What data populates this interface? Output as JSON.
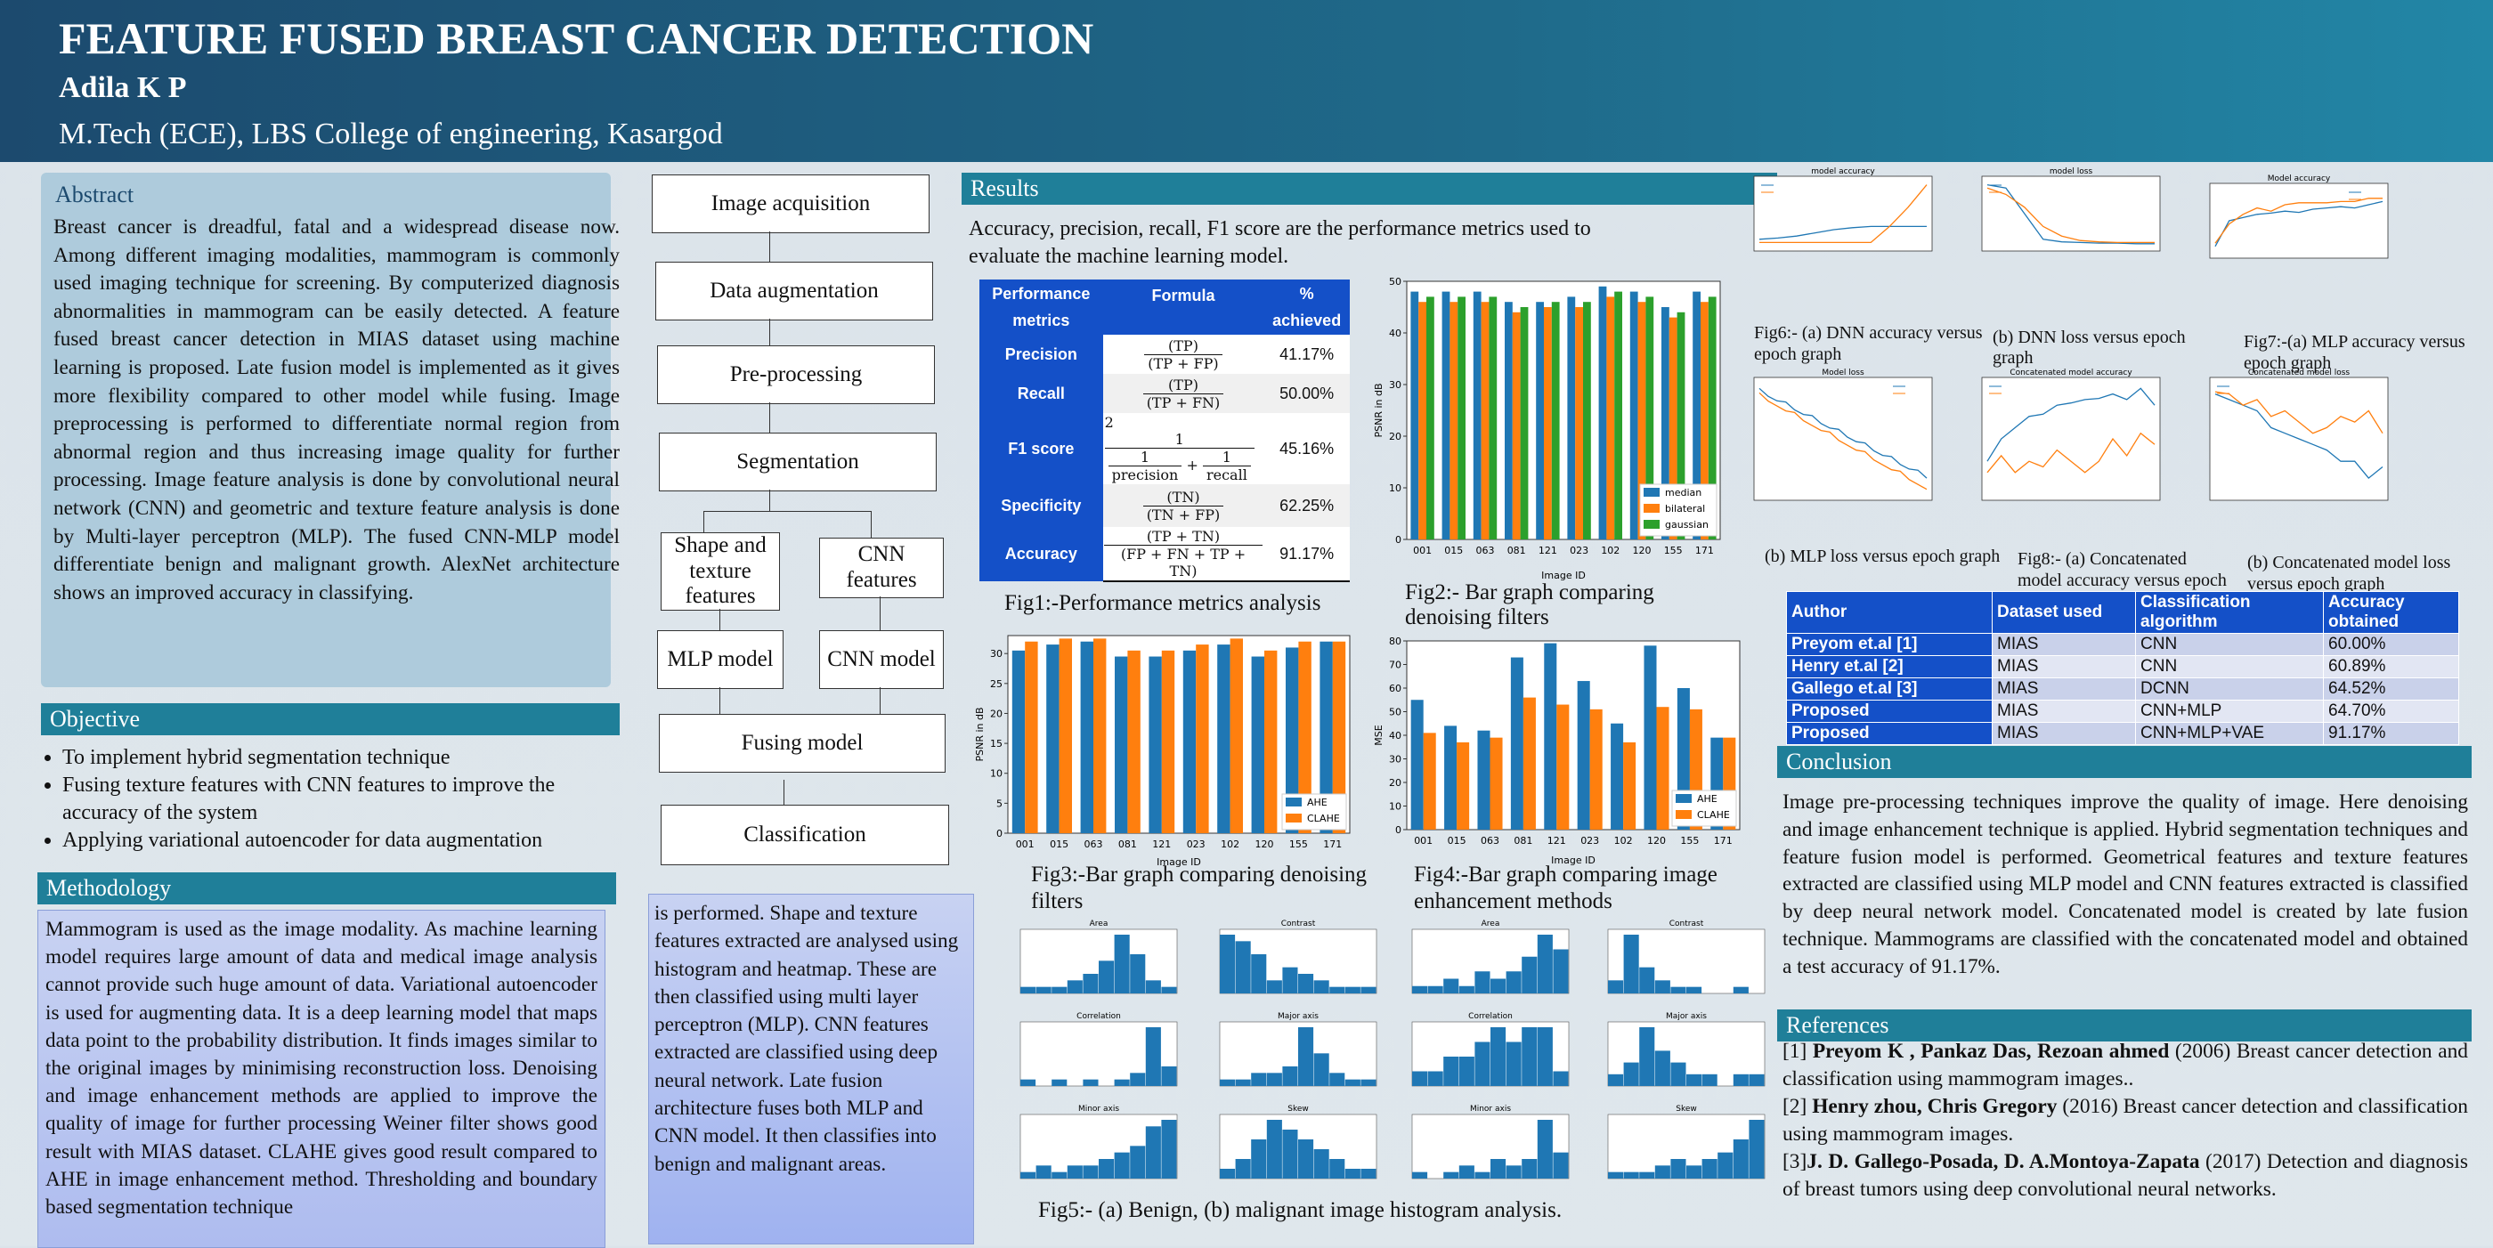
{
  "header": {
    "title": "FEATURE FUSED BREAST CANCER DETECTION",
    "author": "Adila K P",
    "affiliation": "M.Tech (ECE), LBS College of engineering, Kasargod"
  },
  "abstract": {
    "title": "Abstract",
    "text": "Breast cancer is dreadful, fatal and a widespread disease now. Among different imaging modalities, mammogram is commonly used imaging technique for screening. By computerized diagnosis abnormalities in mammogram can be easily detected. A feature fused breast cancer detection in MIAS dataset using machine learning is proposed. Late fusion model is implemented as it gives more flexibility compared to other model while fusing. Image preprocessing is performed to differentiate normal region from abnormal region and thus increasing image quality for further processing. Image feature analysis is done by convolutional neural network (CNN) and geometric and texture feature analysis is done by Multi-layer perceptron (MLP). The fused CNN-MLP model differentiate benign and malignant growth. AlexNet architecture shows an improved accuracy in classifying."
  },
  "objective": {
    "title": "Objective",
    "items": [
      "To implement hybrid segmentation technique",
      "Fusing texture features with CNN features to improve the accuracy of the system",
      "Applying variational autoencoder for data augmentation"
    ]
  },
  "methodology": {
    "title": "Methodology",
    "text": "Mammogram is used as the image modality. As machine learning model requires large amount of data and medical image analysis cannot provide such huge amount of data. Variational autoencoder is used for augmenting data. It is a deep learning model that maps data point to the probability distribution. It finds images similar to the original images by minimising reconstruction loss. Denoising and image enhancement methods are applied to improve the quality of image for further processing Weiner filter shows good result with MIAS dataset.  CLAHE gives good result compared to AHE in image enhancement method. Thresholding and boundary based segmentation technique",
    "continued": "is performed. Shape and texture features extracted are analysed using histogram and heatmap. These are then classified using multi layer perceptron (MLP). CNN features extracted are classified using deep neural network. Late fusion architecture fuses both MLP and CNN model. It then classifies into benign and malignant areas."
  },
  "flow": {
    "acq": "Image acquisition",
    "aug": "Data augmentation",
    "pre": "Pre-processing",
    "seg": "Segmentation",
    "shape": "Shape and texture features",
    "cnnf": "CNN features",
    "mlp": "MLP model",
    "cnnm": "CNN model",
    "fuse": "Fusing model",
    "cls": "Classification"
  },
  "results": {
    "title": "Results",
    "intro": "Accuracy, precision, recall, F1 score are the performance metrics used to evaluate the machine learning model.",
    "table_head": [
      "Performance metrics",
      "Formula",
      "% achieved"
    ],
    "rows": [
      {
        "m": "Precision",
        "num": "(TP)",
        "den": "(TP + FP)",
        "v": "41.17%"
      },
      {
        "m": "Recall",
        "num": "(TP)",
        "den": "(TP + FN)",
        "v": "50.00%"
      },
      {
        "m": "F1 score",
        "num": "1",
        "den": "",
        "v": "45.16%"
      },
      {
        "m": "Specificity",
        "num": "(TN)",
        "den": "(TN + FP)",
        "v": "62.25%"
      },
      {
        "m": "Accuracy",
        "num": "(TP + TN)",
        "den": "(FP + FN + TP + TN)",
        "v": "91.17%"
      }
    ],
    "f1": {
      "two": "2",
      "one": "1",
      "prec": "precision",
      "rec": "recall",
      "plus": "+"
    },
    "fig1": "Fig1:-Performance metrics analysis",
    "fig2": "Fig2:- Bar graph comparing denoising filters",
    "fig3": "Fig3:-Bar graph comparing denoising filters",
    "fig4": "Fig4:-Bar graph comparing image enhancement methods",
    "fig5": "Fig5:- (a) Benign, (b) malignant image histogram analysis."
  },
  "chart_data": [
    {
      "type": "bar",
      "categories": [
        "001",
        "015",
        "063",
        "081",
        "121",
        "023",
        "102",
        "120",
        "155",
        "171"
      ],
      "series": [
        {
          "name": "median",
          "values": [
            48,
            48,
            48,
            46,
            46,
            47,
            49,
            48,
            45,
            48
          ]
        },
        {
          "name": "bilateral",
          "values": [
            46,
            46,
            46,
            44,
            45,
            45,
            47,
            46,
            43,
            46
          ]
        },
        {
          "name": "gaussian",
          "values": [
            47,
            47,
            47,
            45,
            46,
            46,
            48,
            47,
            44,
            47
          ]
        }
      ],
      "xlabel": "Image ID",
      "ylabel": "PSNR in dB",
      "ylim": [
        0,
        50
      ]
    },
    {
      "type": "bar",
      "categories": [
        "001",
        "015",
        "063",
        "081",
        "121",
        "023",
        "102",
        "120",
        "155",
        "171"
      ],
      "series": [
        {
          "name": "AHE",
          "values": [
            30.5,
            31.5,
            32,
            29.5,
            29.5,
            30.5,
            31.5,
            29.5,
            31,
            32
          ]
        },
        {
          "name": "CLAHE",
          "values": [
            32,
            32.5,
            32.5,
            30.5,
            30.5,
            31.5,
            32.5,
            30.5,
            32,
            32
          ]
        }
      ],
      "xlabel": "Image ID",
      "ylabel": "PSNR in dB",
      "ylim": [
        0,
        33
      ]
    },
    {
      "type": "bar",
      "categories": [
        "001",
        "015",
        "063",
        "081",
        "121",
        "023",
        "102",
        "120",
        "155",
        "171"
      ],
      "series": [
        {
          "name": "AHE",
          "values": [
            55,
            44,
            42,
            73,
            79,
            63,
            45,
            78,
            60,
            39
          ]
        },
        {
          "name": "CLAHE",
          "values": [
            41,
            37,
            39,
            56,
            53,
            51,
            37,
            52,
            51,
            39
          ]
        }
      ],
      "xlabel": "Image ID",
      "ylabel": "MSE",
      "ylim": [
        0,
        80
      ]
    }
  ],
  "fig5_titles": {
    "a": [
      "Area",
      "Contrast",
      "Correlation",
      "Major axis",
      "Minor axis",
      "Skew"
    ],
    "b": [
      "Area",
      "Contrast",
      "Correlation",
      "Major axis",
      "Minor axis",
      "Skew"
    ]
  },
  "fig5_vals": [
    [
      1,
      1,
      1,
      2,
      3,
      5,
      9,
      6,
      2,
      1
    ],
    [
      9,
      8,
      6,
      2,
      4,
      3,
      2,
      1,
      1,
      1
    ],
    [
      1,
      1,
      2,
      1,
      3,
      2,
      3,
      5,
      8,
      6
    ],
    [
      2,
      9,
      4,
      2,
      1,
      1,
      0,
      0,
      1,
      0
    ],
    [
      1,
      0,
      1,
      0,
      1,
      0,
      1,
      2,
      9,
      3
    ],
    [
      1,
      1,
      2,
      2,
      3,
      9,
      5,
      2,
      1,
      1
    ],
    [
      1,
      1,
      2,
      2,
      3,
      4,
      3,
      4,
      4,
      1
    ],
    [
      1,
      2,
      5,
      3,
      2,
      1,
      1,
      0,
      1,
      1
    ],
    [
      1,
      2,
      1,
      2,
      2,
      3,
      4,
      5,
      8,
      9
    ],
    [
      1,
      2,
      4,
      6,
      5,
      4,
      3,
      2,
      1,
      1
    ],
    [
      1,
      0,
      1,
      2,
      1,
      3,
      2,
      3,
      9,
      4
    ],
    [
      1,
      1,
      1,
      2,
      3,
      2,
      3,
      4,
      6,
      9
    ]
  ],
  "training": {
    "fig6a": "Fig6:- (a) DNN accuracy versus epoch graph",
    "fig6b": "(b) DNN loss versus epoch graph",
    "fig7a": "Fig7:-(a) MLP accuracy versus epoch graph",
    "fig7b": "(b) MLP loss versus epoch graph",
    "fig8a": "Fig8:- (a) Concatenated model accuracy versus epoch graph",
    "fig8b": "(b) Concatenated model loss versus epoch graph",
    "t1": "model accuracy",
    "t2": "model loss",
    "t3": "Model accuracy",
    "t4": "Model loss",
    "t5": "Concatenated model accuracy",
    "t6": "Concatenated model loss"
  },
  "compare": {
    "head": [
      "Author",
      "Dataset used",
      "Classification algorithm",
      "Accuracy obtained"
    ],
    "rows": [
      [
        "Preyom et.al [1]",
        "MIAS",
        "CNN",
        "60.00%"
      ],
      [
        "Henry et.al [2]",
        "MIAS",
        "CNN",
        "60.89%"
      ],
      [
        "Gallego et.al [3]",
        "MIAS",
        "DCNN",
        "64.52%"
      ],
      [
        "Proposed",
        "MIAS",
        "CNN+MLP",
        "64.70%"
      ],
      [
        "Proposed",
        "MIAS",
        "CNN+MLP+VAE",
        "91.17%"
      ]
    ]
  },
  "conclusion": {
    "title": "Conclusion",
    "text": "Image pre-processing techniques improve the quality of image. Here denoising and image enhancement technique is applied. Hybrid segmentation techniques and feature fusion model is performed. Geometrical features and texture features extracted are classified using MLP model and CNN features extracted is classified by deep neural network model. Concatenated model is created by late fusion technique. Mammograms are classified with the concatenated model and obtained a test accuracy of 91.17%."
  },
  "references": {
    "title": "References",
    "items": [
      {
        "n": "[1] ",
        "a": "Preyom K , Pankaz Das, Rezoan ahmed",
        "r": " (2006) Breast cancer detection and classification using mammogram images.."
      },
      {
        "n": "[2] ",
        "a": "Henry zhou, Chris Gregory",
        "r": " (2016) Breast cancer detection and classification using mammogram images."
      },
      {
        "n": "[3]",
        "a": "J. D. Gallego-Posada, D. A.Montoya-Zapata",
        "r": " (2017) Detection and diagnosis of breast tumors using deep convolutional neural networks."
      }
    ]
  },
  "colors": {
    "header": "#1c4a6e",
    "bar": "#1f7f99",
    "blue": "#1f77b4",
    "orange": "#ff7f0e",
    "green": "#2ca02c",
    "table": "#1450c8"
  }
}
